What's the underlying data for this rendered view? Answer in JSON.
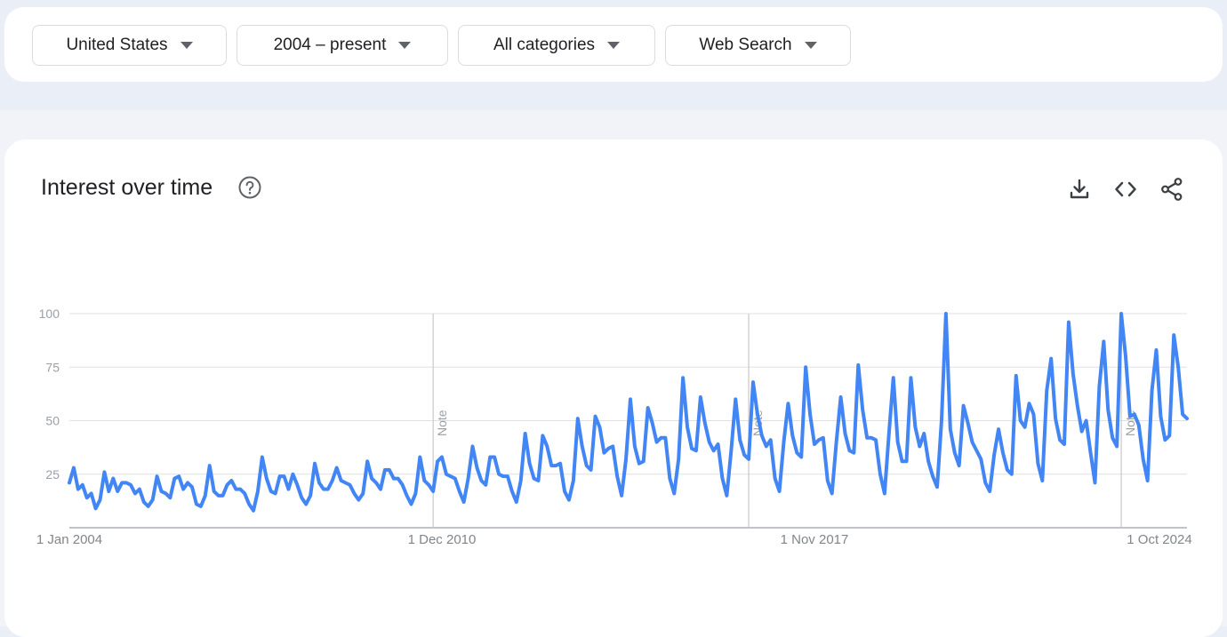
{
  "filters": [
    {
      "label": "United States"
    },
    {
      "label": "2004 – present"
    },
    {
      "label": "All categories"
    },
    {
      "label": "Web Search"
    }
  ],
  "card": {
    "title": "Interest over time",
    "icons": [
      "help-icon",
      "download-icon",
      "embed-icon",
      "share-icon"
    ]
  },
  "colors": {
    "line": "#4285f4",
    "grid": "#e0e0e0",
    "axis": "#9aa0a6"
  },
  "chart_data": {
    "type": "line",
    "title": "",
    "xlabel": "",
    "ylabel": "",
    "ylim": [
      0,
      100
    ],
    "y_ticks": [
      25,
      50,
      75,
      100
    ],
    "x_tick_labels": [
      "1 Jan 2004",
      "1 Dec 2010",
      "1 Nov 2017",
      "1 Oct 2024"
    ],
    "grid": true,
    "annotations": [
      {
        "text": "Note",
        "month_index": 83
      },
      {
        "text": "Note",
        "month_index": 155
      },
      {
        "text": "Note",
        "month_index": 240
      }
    ],
    "series": [
      {
        "start": "2004-01",
        "frequency": "monthly",
        "values": [
          21,
          28,
          18,
          20,
          14,
          16,
          9,
          13,
          26,
          17,
          23,
          17,
          21,
          21,
          20,
          16,
          18,
          12,
          10,
          13,
          24,
          17,
          16,
          14,
          23,
          24,
          18,
          21,
          19,
          11,
          10,
          15,
          29,
          17,
          15,
          15,
          20,
          22,
          18,
          18,
          16,
          11,
          8,
          17,
          33,
          23,
          17,
          16,
          24,
          24,
          18,
          25,
          20,
          14,
          11,
          15,
          30,
          21,
          18,
          18,
          22,
          28,
          22,
          21,
          20,
          16,
          13,
          16,
          31,
          23,
          21,
          18,
          27,
          27,
          23,
          23,
          20,
          15,
          11,
          16,
          33,
          22,
          20,
          17,
          31,
          33,
          25,
          24,
          23,
          17,
          12,
          23,
          38,
          28,
          22,
          20,
          33,
          33,
          25,
          24,
          24,
          17,
          12,
          22,
          44,
          30,
          23,
          22,
          43,
          38,
          29,
          29,
          30,
          17,
          13,
          22,
          51,
          38,
          29,
          27,
          52,
          47,
          35,
          37,
          38,
          24,
          15,
          32,
          60,
          38,
          30,
          31,
          56,
          49,
          40,
          42,
          42,
          23,
          16,
          32,
          70,
          47,
          37,
          36,
          61,
          49,
          40,
          36,
          39,
          23,
          15,
          36,
          60,
          41,
          34,
          32,
          68,
          53,
          43,
          38,
          41,
          23,
          17,
          40,
          58,
          43,
          35,
          33,
          75,
          53,
          39,
          41,
          42,
          22,
          16,
          40,
          61,
          44,
          36,
          35,
          76,
          55,
          42,
          42,
          41,
          25,
          16,
          44,
          70,
          40,
          31,
          31,
          70,
          47,
          38,
          44,
          31,
          24,
          19,
          50,
          100,
          46,
          35,
          29,
          57,
          49,
          40,
          36,
          32,
          21,
          17,
          34,
          46,
          35,
          27,
          25,
          71,
          50,
          47,
          58,
          53,
          30,
          22,
          64,
          79,
          51,
          41,
          39,
          96,
          72,
          57,
          45,
          50,
          35,
          21,
          66,
          87,
          55,
          42,
          38,
          100,
          80,
          52,
          53,
          48,
          32,
          22,
          64,
          83,
          52,
          41,
          43,
          90,
          75,
          53,
          51
        ]
      }
    ]
  }
}
